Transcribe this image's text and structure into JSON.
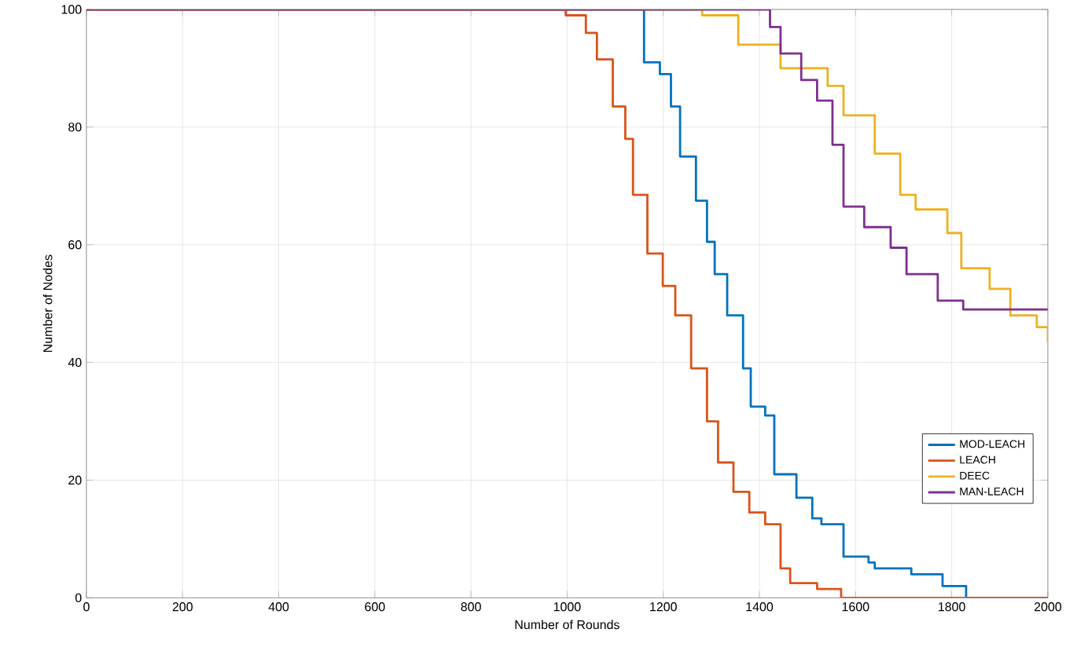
{
  "chart_data": {
    "type": "step",
    "xlabel": "Number of Rounds",
    "ylabel": "Number of Nodes",
    "xlim": [
      0,
      2000
    ],
    "ylim": [
      0,
      100
    ],
    "xticks": [
      0,
      200,
      400,
      600,
      800,
      1000,
      1200,
      1400,
      1600,
      1800,
      2000
    ],
    "yticks": [
      0,
      20,
      40,
      60,
      80,
      100
    ],
    "grid": true,
    "legend": "bottom right",
    "line_style": "solid",
    "series": [
      {
        "name": "MOD-LEACH",
        "color": "#0072bd",
        "x": [
          0,
          1127,
          1160,
          1193,
          1216,
          1235,
          1268,
          1291,
          1307,
          1333,
          1366,
          1382,
          1412,
          1431,
          1477,
          1510,
          1529,
          1575,
          1627,
          1640,
          1716,
          1781,
          1830,
          2000
        ],
        "values": [
          100,
          100,
          91,
          89,
          83.5,
          75,
          67.5,
          60.5,
          55,
          48,
          39,
          32.5,
          31,
          21,
          17,
          13.5,
          12.5,
          7,
          6,
          5,
          4,
          2,
          0,
          0
        ]
      },
      {
        "name": "LEACH",
        "color": "#d95319",
        "x": [
          0,
          987,
          997,
          1039,
          1062,
          1095,
          1121,
          1137,
          1167,
          1199,
          1225,
          1258,
          1291,
          1314,
          1346,
          1379,
          1412,
          1444,
          1464,
          1520,
          1570,
          2000
        ],
        "values": [
          100,
          100,
          99,
          96,
          91.5,
          83.5,
          78,
          68.5,
          58.5,
          53,
          48,
          39,
          30,
          23,
          18,
          14.5,
          12.5,
          5,
          2.5,
          1.5,
          0,
          0
        ]
      },
      {
        "name": "DEEC",
        "color": "#edb120",
        "x": [
          0,
          1225,
          1281,
          1356,
          1444,
          1542,
          1575,
          1640,
          1693,
          1725,
          1791,
          1820,
          1879,
          1922,
          1977,
          2000
        ],
        "values": [
          100,
          100,
          99,
          94,
          90,
          87,
          82,
          75.5,
          68.5,
          66,
          62,
          56,
          52.5,
          48,
          46,
          43.5
        ]
      },
      {
        "name": "MAN-LEACH",
        "color": "#7e2f8e",
        "x": [
          0,
          1383,
          1422,
          1444,
          1487,
          1520,
          1552,
          1575,
          1618,
          1673,
          1706,
          1771,
          1824,
          2000
        ],
        "values": [
          100,
          100,
          97,
          92.5,
          88,
          84.5,
          77,
          66.5,
          63,
          59.5,
          55,
          50.5,
          49,
          49
        ]
      }
    ]
  }
}
